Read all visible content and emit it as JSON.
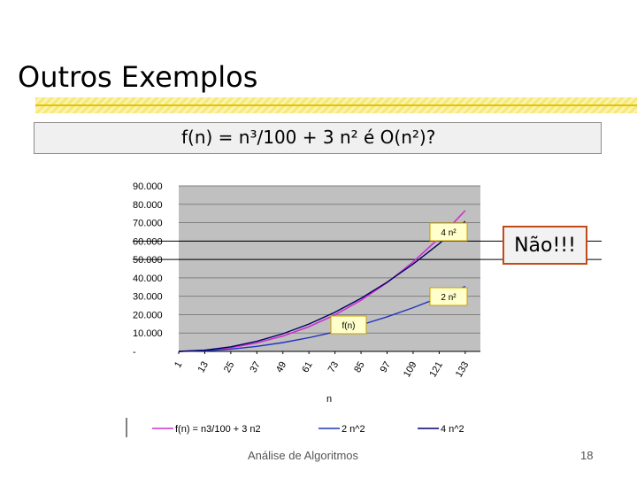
{
  "slide": {
    "title": "Outros Exemplos",
    "question": "f(n) = n³/100 + 3 n² é O(n²)?",
    "answer": "Não!!!",
    "footer": "Análise de Algoritmos",
    "page_number": "18"
  },
  "colors": {
    "title_bar": "#f6e87a",
    "answer_border": "#c04a1a",
    "plot_bg": "#c0c0c0",
    "fn": "#cc33cc",
    "two_n2": "#2233bb",
    "four_n2": "#000066",
    "callout_border": "#c8a000",
    "callout_bg": "#ffffcc"
  },
  "chart_data": {
    "type": "line",
    "x": [
      1,
      13,
      25,
      37,
      49,
      61,
      73,
      85,
      97,
      109,
      121,
      133
    ],
    "x_ticks": [
      "1",
      "13",
      "25",
      "37",
      "49",
      "61",
      "73",
      "85",
      "97",
      "109",
      "121",
      "133"
    ],
    "xlabel": "n",
    "ylabel": "",
    "ylim": [
      0,
      90000
    ],
    "y_ticks": [
      "-",
      "10.000",
      "20.000",
      "30.000",
      "40.000",
      "50.000",
      "60.000",
      "70.000",
      "80.000",
      "90.000"
    ],
    "grid": true,
    "series": [
      {
        "name": "f(n) = n3/100 + 3 n2",
        "key": "fn",
        "values": [
          3.01,
          529,
          2031,
          4614,
          8380,
          13434,
          19880,
          27816,
          37354,
          48588,
          61636,
          76592
        ]
      },
      {
        "name": "2 n^2",
        "key": "two_n2",
        "values": [
          2,
          338,
          1250,
          2738,
          4802,
          7442,
          10658,
          14450,
          18818,
          23762,
          29282,
          35378
        ]
      },
      {
        "name": "4 n^2",
        "key": "four_n2",
        "values": [
          4,
          676,
          2500,
          5476,
          9604,
          14884,
          21316,
          28900,
          37636,
          47524,
          58564,
          70756
        ]
      }
    ],
    "callouts": [
      {
        "label": "4 n²",
        "series": "four_n2"
      },
      {
        "label": "2 n²",
        "series": "two_n2"
      },
      {
        "label": "f(n)",
        "series": "fn"
      }
    ],
    "reference_lines": [
      50000,
      60000
    ]
  }
}
